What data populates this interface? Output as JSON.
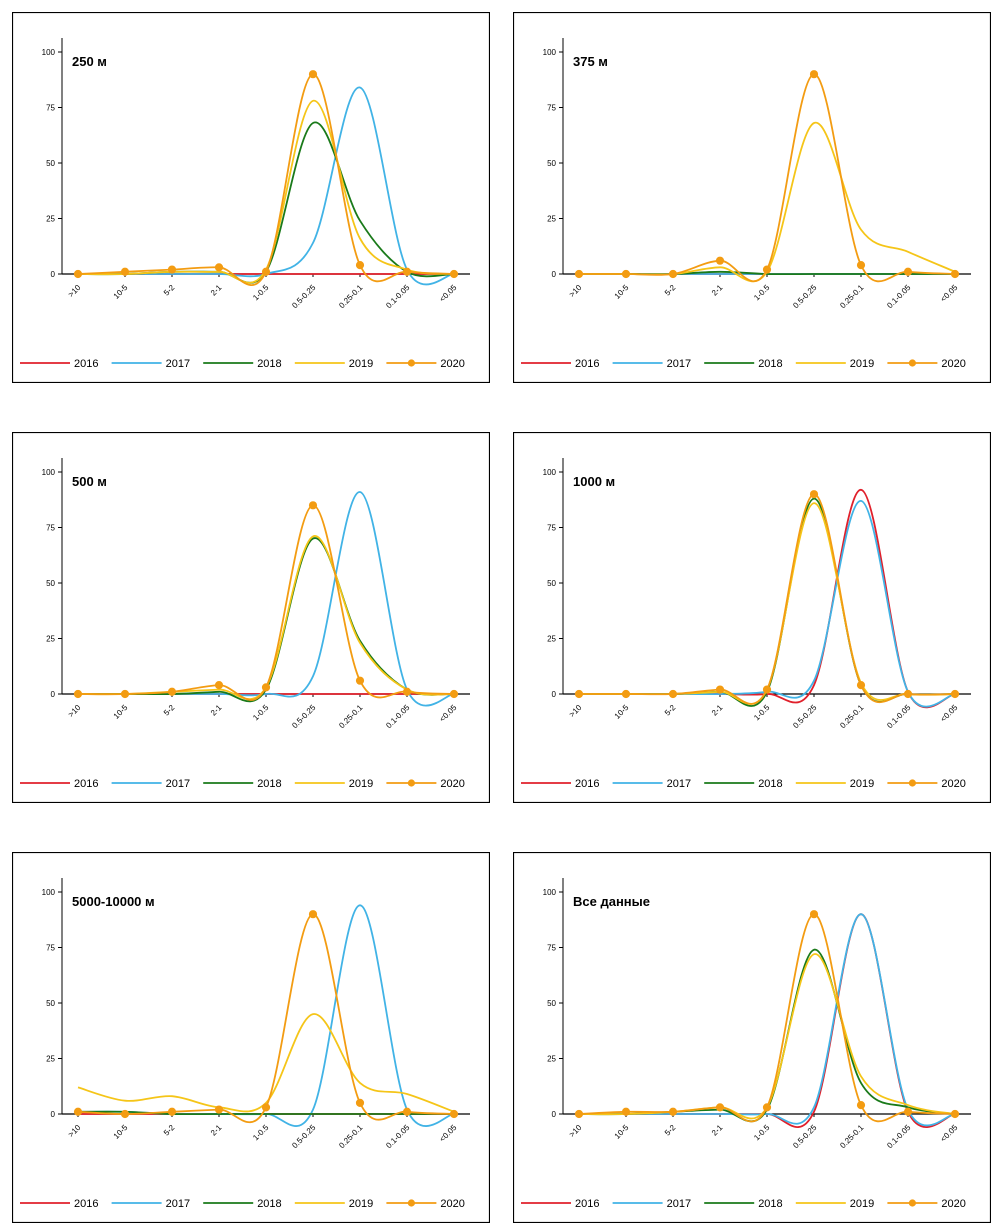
{
  "chart_data": [
    {
      "type": "line",
      "title": "250 м",
      "categories": [
        ">10",
        "10-5",
        "5-2",
        "2-1",
        "1-0.5",
        "0.5-0.25",
        "0.25-0.1",
        "0.1-0.05",
        "<0.05"
      ],
      "ylim": [
        0,
        100
      ],
      "yticks": [
        0,
        25,
        50,
        75,
        100
      ],
      "grid": false,
      "legend_position": "bottom",
      "series": [
        {
          "name": "2016",
          "color": "#e0202b",
          "values": [
            0,
            0,
            0,
            0,
            0,
            0,
            0,
            0,
            0
          ]
        },
        {
          "name": "2017",
          "color": "#41b3e6",
          "values": [
            0,
            0,
            0,
            0,
            0,
            14,
            84,
            2,
            0
          ]
        },
        {
          "name": "2018",
          "color": "#1a7a1a",
          "values": [
            0,
            0,
            1,
            1,
            1,
            68,
            24,
            1,
            0
          ]
        },
        {
          "name": "2019",
          "color": "#f5c518",
          "values": [
            0,
            0,
            1,
            1,
            2,
            78,
            16,
            2,
            0
          ]
        },
        {
          "name": "2020",
          "color": "#f39c12",
          "values": [
            0,
            1,
            2,
            3,
            1,
            90,
            4,
            1,
            0
          ]
        }
      ]
    },
    {
      "type": "line",
      "title": "375 м",
      "categories": [
        ">10",
        "10-5",
        "5-2",
        "2-1",
        "1-0.5",
        "0.5-0.25",
        "0.25-0.1",
        "0.1-0.05",
        "<0.05"
      ],
      "ylim": [
        0,
        100
      ],
      "yticks": [
        0,
        25,
        50,
        75,
        100
      ],
      "grid": false,
      "legend_position": "bottom",
      "series": [
        {
          "name": "2016",
          "color": "#e0202b",
          "values": [
            0,
            0,
            0,
            0,
            0,
            0,
            0,
            0,
            0
          ]
        },
        {
          "name": "2017",
          "color": "#41b3e6",
          "values": [
            0,
            0,
            0,
            0,
            0,
            0,
            0,
            0,
            0
          ]
        },
        {
          "name": "2018",
          "color": "#1a7a1a",
          "values": [
            0,
            0,
            0,
            1,
            0,
            0,
            0,
            0,
            0
          ]
        },
        {
          "name": "2019",
          "color": "#f5c518",
          "values": [
            0,
            0,
            0,
            3,
            1,
            68,
            20,
            10,
            1
          ]
        },
        {
          "name": "2020",
          "color": "#f39c12",
          "values": [
            0,
            0,
            0,
            6,
            2,
            90,
            4,
            1,
            0
          ]
        }
      ]
    },
    {
      "type": "line",
      "title": "500 м",
      "categories": [
        ">10",
        "10-5",
        "5-2",
        "2-1",
        "1-0.5",
        "0.5-0.25",
        "0.25-0.1",
        "0.1-0.05",
        "<0.05"
      ],
      "ylim": [
        0,
        100
      ],
      "yticks": [
        0,
        25,
        50,
        75,
        100
      ],
      "grid": false,
      "legend_position": "bottom",
      "series": [
        {
          "name": "2016",
          "color": "#e0202b",
          "values": [
            0,
            0,
            0,
            0,
            0,
            0,
            0,
            0,
            0
          ]
        },
        {
          "name": "2017",
          "color": "#41b3e6",
          "values": [
            0,
            0,
            0,
            0,
            0,
            8,
            91,
            2,
            0
          ]
        },
        {
          "name": "2018",
          "color": "#1a7a1a",
          "values": [
            0,
            0,
            0,
            1,
            2,
            70,
            24,
            2,
            0
          ]
        },
        {
          "name": "2019",
          "color": "#f5c518",
          "values": [
            0,
            0,
            1,
            2,
            3,
            71,
            23,
            2,
            0
          ]
        },
        {
          "name": "2020",
          "color": "#f39c12",
          "values": [
            0,
            0,
            1,
            4,
            3,
            85,
            6,
            1,
            0
          ]
        }
      ]
    },
    {
      "type": "line",
      "title": "1000 м",
      "categories": [
        ">10",
        "10-5",
        "5-2",
        "2-1",
        "1-0.5",
        "0.5-0.25",
        "0.25-0.1",
        "0.1-0.05",
        "<0.05"
      ],
      "ylim": [
        0,
        100
      ],
      "yticks": [
        0,
        25,
        50,
        75,
        100
      ],
      "grid": false,
      "legend_position": "bottom",
      "series": [
        {
          "name": "2016",
          "color": "#e0202b",
          "values": [
            0,
            0,
            0,
            0,
            0,
            4,
            92,
            1,
            0
          ]
        },
        {
          "name": "2017",
          "color": "#41b3e6",
          "values": [
            0,
            0,
            0,
            0,
            1,
            6,
            87,
            1,
            0
          ]
        },
        {
          "name": "2018",
          "color": "#1a7a1a",
          "values": [
            0,
            0,
            0,
            1,
            1,
            88,
            4,
            0,
            0
          ]
        },
        {
          "name": "2019",
          "color": "#f5c518",
          "values": [
            0,
            0,
            0,
            1,
            2,
            86,
            5,
            0,
            0
          ]
        },
        {
          "name": "2020",
          "color": "#f39c12",
          "values": [
            0,
            0,
            0,
            2,
            2,
            90,
            4,
            0,
            0
          ]
        }
      ]
    },
    {
      "type": "line",
      "title": "5000-10000 м",
      "categories": [
        ">10",
        "10-5",
        "5-2",
        "2-1",
        "1-0.5",
        "0.5-0.25",
        "0.25-0.1",
        "0.1-0.05",
        "<0.05"
      ],
      "ylim": [
        0,
        100
      ],
      "yticks": [
        0,
        25,
        50,
        75,
        100
      ],
      "grid": false,
      "legend_position": "bottom",
      "series": [
        {
          "name": "2016",
          "color": "#e0202b",
          "values": [
            0,
            0,
            0,
            0,
            0,
            0,
            0,
            0,
            0
          ]
        },
        {
          "name": "2017",
          "color": "#41b3e6",
          "values": [
            1,
            1,
            0,
            0,
            0,
            2,
            94,
            2,
            0
          ]
        },
        {
          "name": "2018",
          "color": "#1a7a1a",
          "values": [
            1,
            1,
            0,
            0,
            0,
            0,
            0,
            0,
            0
          ]
        },
        {
          "name": "2019",
          "color": "#f5c518",
          "values": [
            12,
            6,
            8,
            3,
            5,
            45,
            14,
            9,
            1
          ]
        },
        {
          "name": "2020",
          "color": "#f39c12",
          "values": [
            1,
            0,
            1,
            2,
            3,
            90,
            5,
            1,
            0
          ]
        }
      ]
    },
    {
      "type": "line",
      "title": "Все данные",
      "categories": [
        ">10",
        "10-5",
        "5-2",
        "2-1",
        "1-0.5",
        "0.5-0.25",
        "0.25-0.1",
        "0.1-0.05",
        "<0.05"
      ],
      "ylim": [
        0,
        100
      ],
      "yticks": [
        0,
        25,
        50,
        75,
        100
      ],
      "grid": false,
      "legend_position": "bottom",
      "series": [
        {
          "name": "2016",
          "color": "#e0202b",
          "values": [
            0,
            0,
            0,
            0,
            0,
            1,
            90,
            1,
            0
          ]
        },
        {
          "name": "2017",
          "color": "#41b3e6",
          "values": [
            0,
            0,
            0,
            0,
            0,
            3,
            90,
            2,
            0
          ]
        },
        {
          "name": "2018",
          "color": "#1a7a1a",
          "values": [
            0,
            0,
            1,
            2,
            2,
            74,
            14,
            3,
            0
          ]
        },
        {
          "name": "2019",
          "color": "#f5c518",
          "values": [
            0,
            0,
            1,
            3,
            3,
            72,
            17,
            4,
            0
          ]
        },
        {
          "name": "2020",
          "color": "#f39c12",
          "values": [
            0,
            1,
            1,
            3,
            3,
            90,
            4,
            1,
            0
          ]
        }
      ]
    }
  ]
}
